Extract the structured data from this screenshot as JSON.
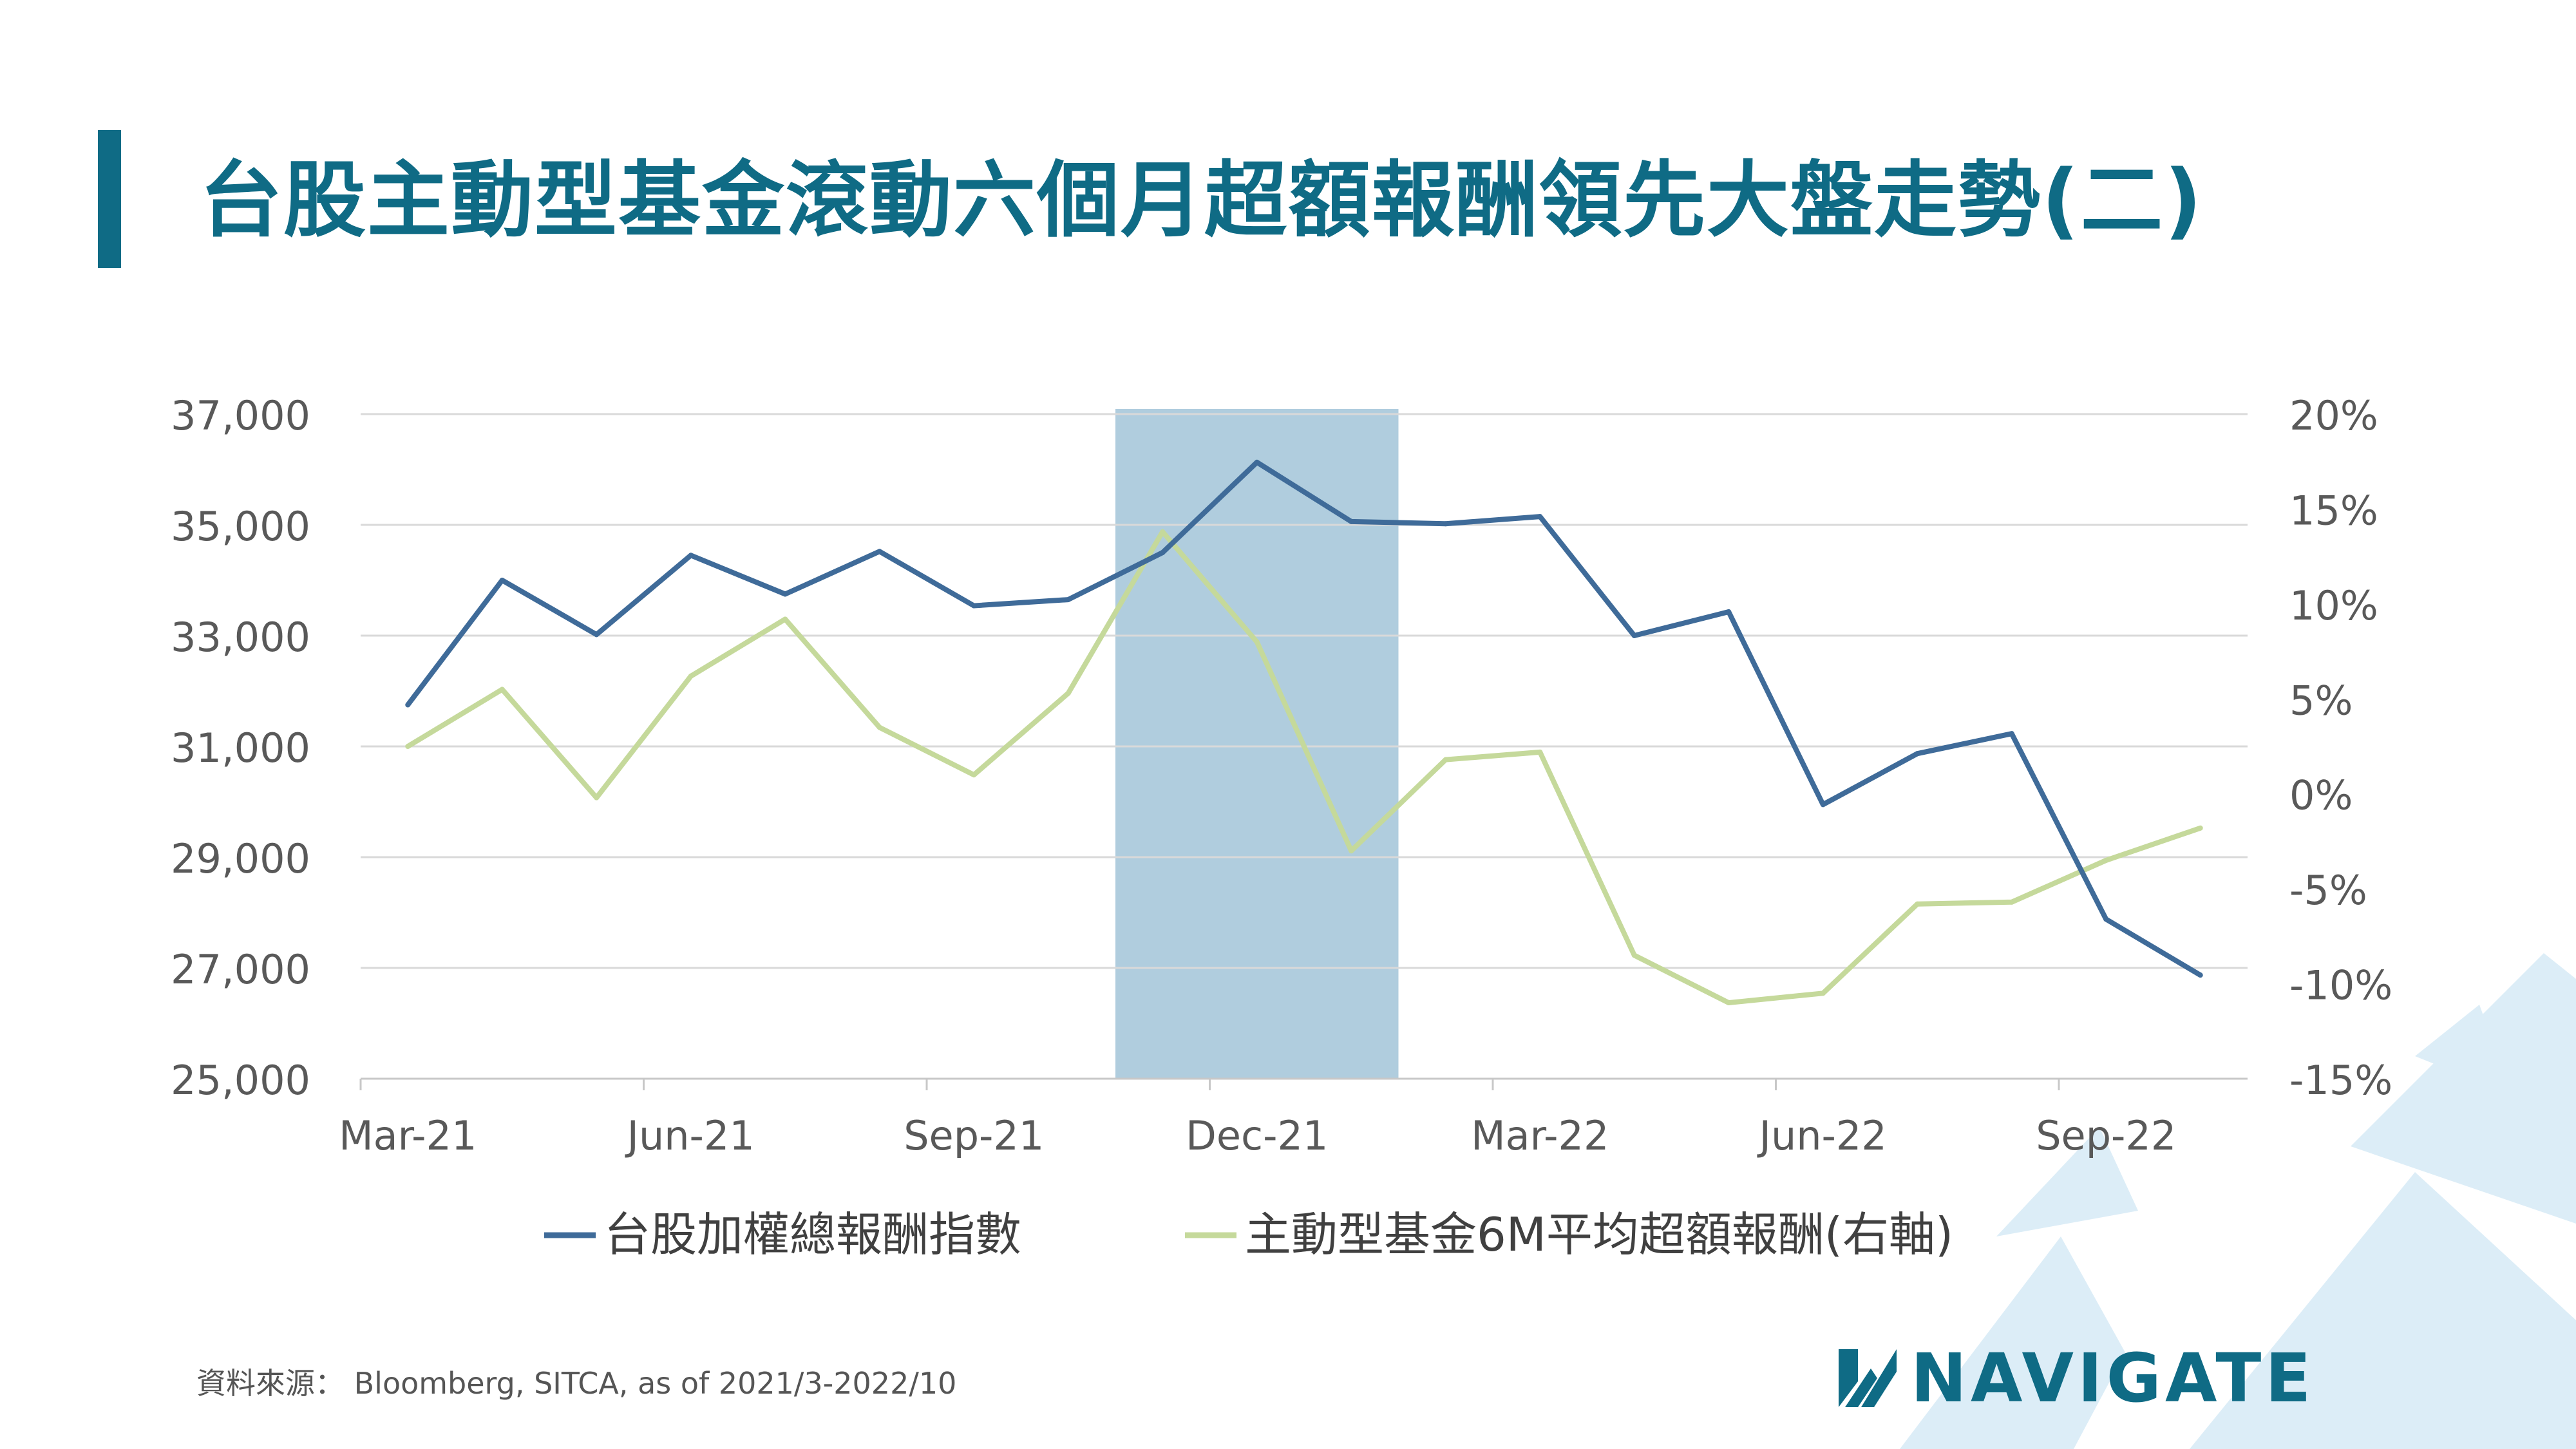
{
  "header": {
    "title": "台股主動型基金滾動六個月超額報酬領先大盤走勢(二)"
  },
  "footer": {
    "source": "資料來源： Bloomberg,  SITCA,  as of 2021/3-2022/10",
    "logo_text": "NAVIGATE"
  },
  "colors": {
    "accent": "#0f6b85",
    "series_index": "#3f6b99",
    "series_excess": "#c5d99b",
    "highlight": "#8fb8d0"
  },
  "chart_data": {
    "type": "line",
    "title": "",
    "x": [
      "Mar-21",
      "Apr-21",
      "May-21",
      "Jun-21",
      "Jul-21",
      "Aug-21",
      "Sep-21",
      "Oct-21",
      "Nov-21",
      "Dec-21",
      "Jan-22",
      "Feb-22",
      "Mar-22",
      "Apr-22",
      "May-22",
      "Jun-22",
      "Jul-22",
      "Aug-22",
      "Sep-22",
      "Oct-22"
    ],
    "x_tick_labels": [
      "Mar-21",
      "Jun-21",
      "Sep-21",
      "Dec-21",
      "Mar-22",
      "Jun-22",
      "Sep-22"
    ],
    "series": [
      {
        "name": "台股加權總報酬指數",
        "axis": "left",
        "color": "#3f6b99",
        "values": [
          31750,
          34000,
          33020,
          34450,
          33750,
          34520,
          33540,
          33650,
          34500,
          36130,
          35060,
          35020,
          35150,
          33000,
          33430,
          29950,
          30870,
          31230,
          27880,
          26870
        ]
      },
      {
        "name": "主動型基金6M平均超額報酬(右軸)",
        "axis": "right",
        "color": "#c5d99b",
        "values": [
          2.5,
          5.5,
          -0.2,
          6.2,
          9.2,
          3.5,
          1.0,
          5.3,
          13.8,
          8.0,
          -3.0,
          1.8,
          2.2,
          -8.5,
          -11.0,
          -10.5,
          -5.8,
          -5.7,
          -3.5,
          -1.8
        ]
      }
    ],
    "left_axis": {
      "ylim": [
        25000,
        37000
      ],
      "ticks": [
        "25,000",
        "27,000",
        "29,000",
        "31,000",
        "33,000",
        "35,000",
        "37,000"
      ]
    },
    "right_axis": {
      "ylim": [
        -15,
        20
      ],
      "ticks": [
        "-15%",
        "-10%",
        "-5%",
        "0%",
        "5%",
        "10%",
        "15%",
        "20%"
      ]
    },
    "highlight_range": [
      "Nov-21",
      "Jan-22"
    ],
    "grid": true,
    "legend_position": "bottom"
  }
}
